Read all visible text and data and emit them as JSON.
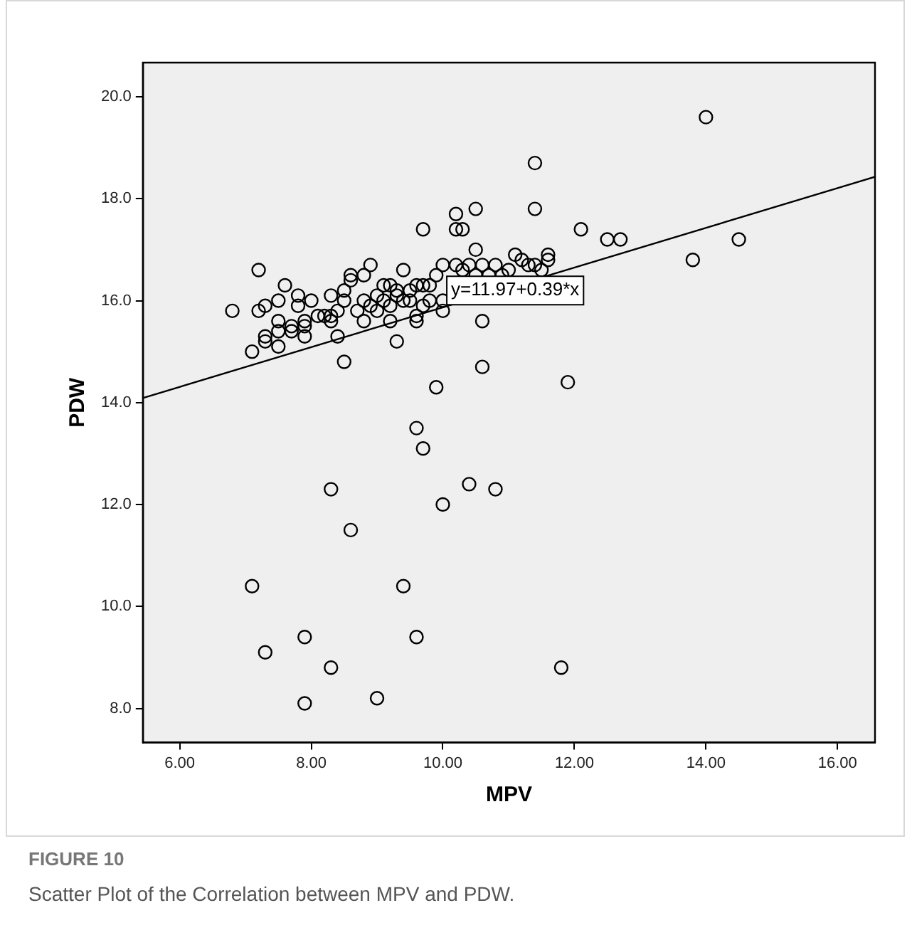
{
  "chart_data": {
    "type": "scatter",
    "xlabel": "MPV",
    "ylabel": "PDW",
    "xlim": [
      5.44,
      16.57
    ],
    "xticks": [
      {
        "value": 6,
        "label": "6.00"
      },
      {
        "value": 8,
        "label": "8.00"
      },
      {
        "value": 10,
        "label": "10.00"
      },
      {
        "value": 12,
        "label": "12.00"
      },
      {
        "value": 14,
        "label": "14.00"
      },
      {
        "value": 16,
        "label": "16.00"
      }
    ],
    "ylim": [
      7.33,
      20.67
    ],
    "yticks": [
      {
        "value": 8,
        "label": "8.0"
      },
      {
        "value": 10,
        "label": "10.0"
      },
      {
        "value": 12,
        "label": "12.0"
      },
      {
        "value": 14,
        "label": "14.0"
      },
      {
        "value": 16,
        "label": "16.0"
      },
      {
        "value": 18,
        "label": "18.0"
      },
      {
        "value": 20,
        "label": "20.0"
      }
    ],
    "grid": false,
    "legend": false,
    "marker": "circle",
    "series": [
      {
        "color": "#000000",
        "x": [
          14.0,
          11.4,
          11.4,
          10.2,
          10.5,
          10.2,
          10.3,
          9.7,
          12.1,
          12.5,
          12.7,
          14.5,
          13.8,
          10.5,
          11.1,
          11.6,
          11.6,
          6.8,
          7.1,
          7.2,
          7.2,
          7.3,
          7.3,
          7.3,
          7.5,
          7.5,
          7.5,
          7.5,
          7.6,
          7.7,
          7.7,
          7.8,
          7.8,
          7.9,
          7.9,
          7.9,
          8.0,
          8.1,
          8.2,
          8.3,
          8.3,
          8.3,
          8.4,
          8.4,
          8.5,
          8.5,
          8.5,
          8.6,
          8.6,
          8.7,
          8.8,
          8.8,
          8.9,
          8.8,
          8.9,
          9.0,
          9.0,
          9.1,
          9.1,
          9.2,
          9.2,
          9.2,
          9.3,
          9.3,
          9.3,
          9.4,
          9.4,
          9.5,
          9.5,
          9.6,
          9.6,
          9.6,
          9.7,
          9.8,
          9.8,
          9.7,
          9.9,
          10.0,
          10.0,
          10.0,
          10.2,
          10.3,
          10.4,
          10.5,
          10.6,
          10.7,
          10.8,
          11.0,
          11.2,
          11.3,
          11.4,
          11.5,
          10.6,
          10.9,
          9.9,
          10.6,
          11.9,
          9.6,
          9.7,
          8.3,
          10.4,
          10.8,
          10.0,
          8.6,
          7.1,
          9.4,
          7.9,
          9.6,
          7.3,
          8.3,
          11.8,
          9.0,
          7.9
        ],
        "values": [
          19.6,
          18.7,
          17.8,
          17.7,
          17.8,
          17.4,
          17.4,
          17.4,
          17.4,
          17.2,
          17.2,
          17.2,
          16.8,
          17.0,
          16.9,
          16.9,
          16.8,
          15.8,
          15.0,
          15.8,
          16.6,
          15.2,
          15.3,
          15.9,
          15.1,
          15.4,
          15.6,
          16.0,
          16.3,
          15.5,
          15.4,
          15.9,
          16.1,
          15.3,
          15.5,
          15.6,
          16.0,
          15.7,
          15.7,
          15.6,
          15.7,
          16.1,
          15.3,
          15.8,
          16.0,
          14.8,
          16.2,
          16.4,
          16.5,
          15.8,
          16.0,
          16.5,
          16.7,
          15.6,
          15.9,
          16.1,
          15.8,
          16.3,
          16.0,
          16.3,
          15.9,
          15.6,
          16.2,
          16.1,
          15.2,
          16.0,
          16.6,
          16.2,
          16.0,
          16.3,
          15.6,
          15.7,
          16.3,
          16.0,
          16.3,
          15.9,
          16.5,
          16.7,
          16.0,
          15.8,
          16.7,
          16.6,
          16.7,
          16.5,
          16.7,
          16.5,
          16.7,
          16.6,
          16.8,
          16.7,
          16.7,
          16.6,
          15.6,
          16.5,
          14.3,
          14.7,
          14.4,
          13.5,
          13.1,
          12.3,
          12.4,
          12.3,
          12.0,
          11.5,
          10.4,
          10.4,
          9.4,
          9.4,
          9.1,
          8.8,
          8.8,
          8.2,
          8.1
        ]
      },
      {
        "type": "line",
        "color": "#000000",
        "marker": "none",
        "x": [
          5.44,
          16.57
        ],
        "values": [
          14.09,
          18.43
        ]
      }
    ],
    "annotations": [
      {
        "text": "y=11.97+0.39*x",
        "x": 11.1,
        "y": 16.2
      },
      "FIGURE 10",
      "Scatter Plot of the Correlation between MPV and PDW."
    ]
  }
}
